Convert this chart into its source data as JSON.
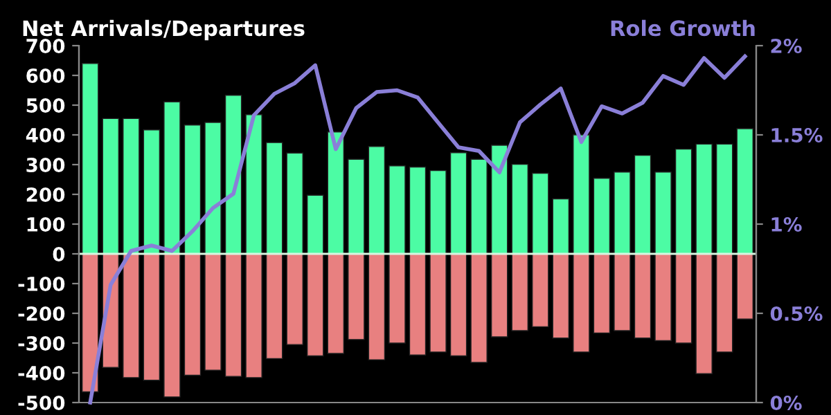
{
  "chart_data": {
    "type": "bar",
    "stacked": true,
    "ylabel": "Net Arrivals/Departures",
    "y2label": "Role Growth",
    "categories": [
      null,
      null,
      null,
      null,
      null,
      null,
      null,
      null,
      null,
      null,
      null,
      null,
      null,
      null,
      null,
      null,
      null,
      null,
      null,
      null,
      null,
      null,
      null,
      null,
      null,
      null,
      null,
      null,
      null,
      null,
      null,
      null,
      null
    ],
    "series": [
      {
        "color": "#4cfca4",
        "values": [
          640,
          455,
          455,
          417,
          511,
          433,
          442,
          533,
          468,
          374,
          339,
          197,
          410,
          318,
          361,
          296,
          292,
          280,
          340,
          318,
          365,
          301,
          271,
          185,
          400,
          254,
          275,
          331,
          275,
          352,
          369,
          369,
          421
        ]
      },
      {
        "color": "#e88080",
        "values": [
          -464,
          -382,
          -416,
          -425,
          -481,
          -408,
          -391,
          -412,
          -416,
          -352,
          -305,
          -343,
          -335,
          -288,
          -356,
          -300,
          -340,
          -330,
          -343,
          -365,
          -279,
          -258,
          -245,
          -283,
          -330,
          -266,
          -258,
          -283,
          -292,
          -300,
          -403,
          -330,
          -219
        ]
      },
      {
        "type": "line",
        "axis": "y2",
        "color": "#8a7fd8",
        "values": [
          0,
          0.66,
          0.85,
          0.88,
          0.85,
          0.96,
          1.09,
          1.17,
          1.61,
          1.73,
          1.79,
          1.89,
          1.42,
          1.65,
          1.74,
          1.75,
          1.71,
          1.57,
          1.43,
          1.41,
          1.29,
          1.57,
          1.67,
          1.76,
          1.46,
          1.66,
          1.62,
          1.68,
          1.83,
          1.78,
          1.93,
          1.82,
          1.94
        ]
      }
    ],
    "ylim": [
      -500,
      700
    ],
    "yticks": [
      -500,
      -400,
      -300,
      -200,
      -100,
      0,
      100,
      200,
      300,
      400,
      500,
      600,
      700
    ],
    "y2lim": [
      0,
      2
    ],
    "y2ticks": [
      {
        "value": 0,
        "label": "0%"
      },
      {
        "value": 0.5,
        "label": "0.5%"
      },
      {
        "value": 1,
        "label": "1%"
      },
      {
        "value": 1.5,
        "label": "1.5%"
      },
      {
        "value": 2,
        "label": "2%"
      }
    ],
    "ref_lines": [
      {
        "axis": "y",
        "value": 0,
        "color": "#d8f5e0"
      }
    ],
    "grid": false
  }
}
